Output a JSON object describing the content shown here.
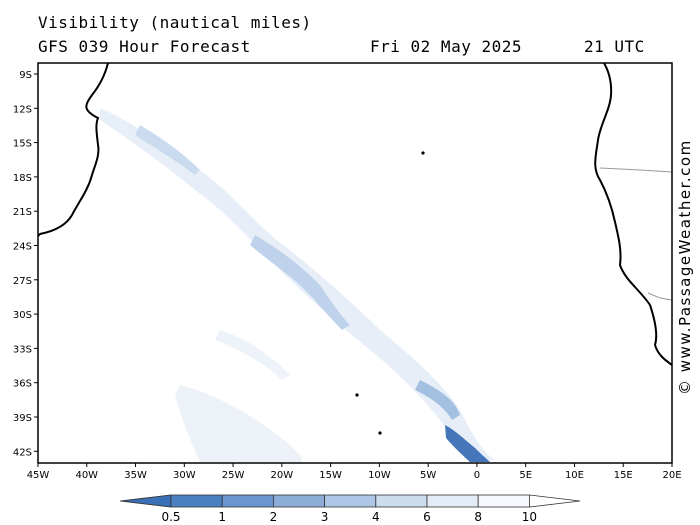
{
  "title": "Visibility (nautical miles)",
  "forecast": "GFS 039 Hour Forecast",
  "date": "Fri 02 May 2025",
  "time": "21 UTC",
  "credit": "© www.PassageWeather.com",
  "lat_labels": [
    "9S",
    "12S",
    "15S",
    "18S",
    "21S",
    "24S",
    "27S",
    "30S",
    "33S",
    "36S",
    "39S",
    "42S"
  ],
  "lon_labels": [
    "45W",
    "40W",
    "35W",
    "30W",
    "25W",
    "20W",
    "15W",
    "10W",
    "5W",
    "0",
    "5E",
    "10E",
    "15E",
    "20E"
  ],
  "colorbar": {
    "labels": [
      "0.5",
      "1",
      "2",
      "3",
      "4",
      "6",
      "8",
      "10"
    ],
    "colors": [
      "#3b6fb6",
      "#4a7fc1",
      "#6a95cf",
      "#8badd8",
      "#adc6e5",
      "#cbdcef",
      "#e3ecf7",
      "#f5f8fc"
    ]
  }
}
